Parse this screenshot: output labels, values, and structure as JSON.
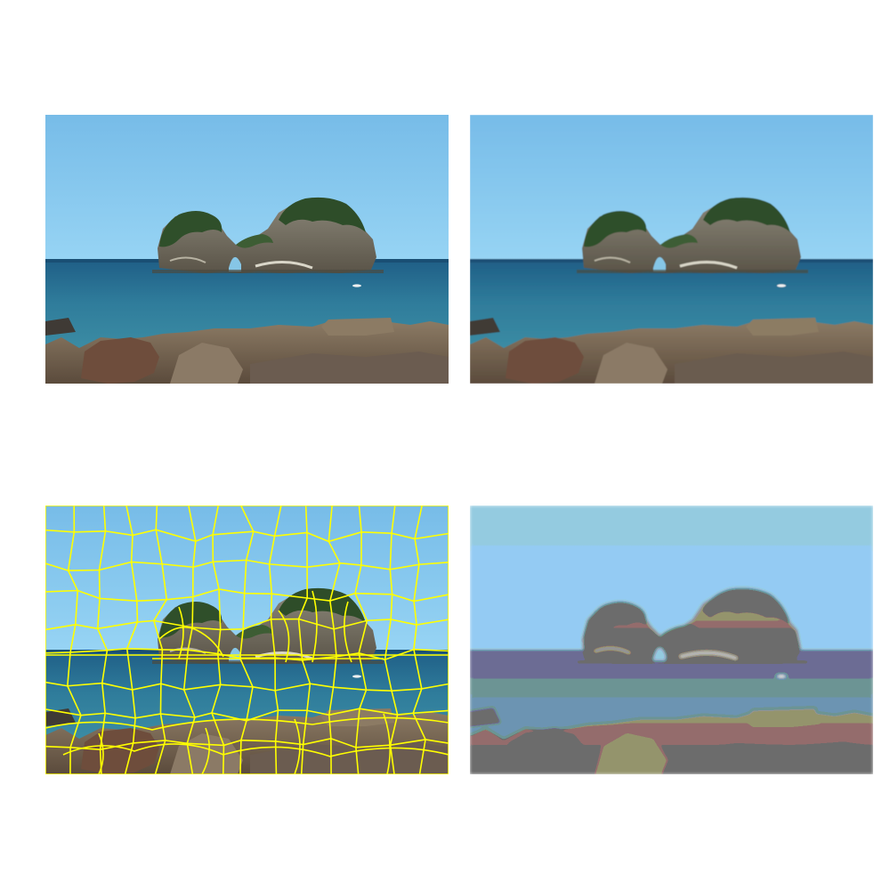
{
  "figure": {
    "panels": [
      {
        "id": "original",
        "kind": "photo"
      },
      {
        "id": "smoothed",
        "kind": "photo-filtered"
      },
      {
        "id": "superpixel-boundaries",
        "kind": "segmentation-overlay",
        "boundary_color": "#ffff00"
      },
      {
        "id": "superpixel-mean-color",
        "kind": "segmentation-mean"
      }
    ],
    "palette": {
      "sky_top": "#7ec3ec",
      "sky_bottom": "#8fd2f6",
      "sea_far": "#1e5f83",
      "sea_near": "#3a8aa3",
      "rock_island": "#6d6f63",
      "vegetation": "#2f4f2a",
      "foreground_rock": "#7a6a58",
      "boundary": "#ffff00"
    }
  }
}
